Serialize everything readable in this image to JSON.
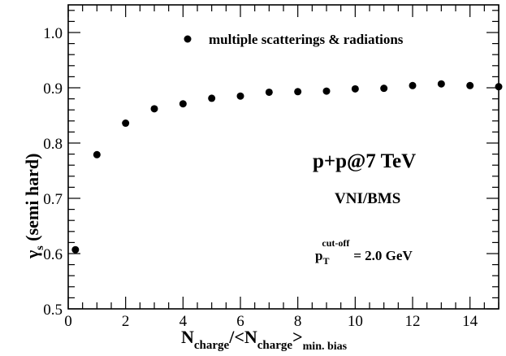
{
  "chart_data": {
    "type": "scatter",
    "title": "",
    "xlabel": {
      "main": "N",
      "sub1": "charge",
      "mid": "/<N",
      "sub2": "charge",
      "close": ">",
      "sub3": "min. bias"
    },
    "ylabel": {
      "gamma": "γ",
      "sub": "s",
      "rest": " (semi hard)"
    },
    "xlim": [
      0,
      15
    ],
    "ylim": [
      0.5,
      1.05
    ],
    "x_ticks": [
      "0",
      "2",
      "4",
      "6",
      "8",
      "10",
      "12",
      "14"
    ],
    "y_ticks": [
      "0.5",
      "0.6",
      "0.7",
      "0.8",
      "0.9",
      "1.0"
    ],
    "grid": false,
    "legend": {
      "position": "top-right",
      "entries": [
        "multiple scatterings & radiations"
      ]
    },
    "series": [
      {
        "name": "multiple scatterings & radiations",
        "color": "#000000",
        "x": [
          0.25,
          1,
          2,
          3,
          4,
          5,
          6,
          7,
          8,
          9,
          10,
          11,
          12,
          13,
          14,
          15
        ],
        "y": [
          0.607,
          0.779,
          0.836,
          0.862,
          0.871,
          0.881,
          0.885,
          0.892,
          0.893,
          0.894,
          0.898,
          0.899,
          0.904,
          0.907,
          0.904,
          0.902
        ]
      }
    ],
    "annotations": {
      "system": "p+p@7 TeV",
      "model": "VNI/BMS",
      "cut_p": "p",
      "cut_sub": "T",
      "cut_sup": "cut-off",
      "cut_value": " = 2.0 GeV"
    }
  }
}
